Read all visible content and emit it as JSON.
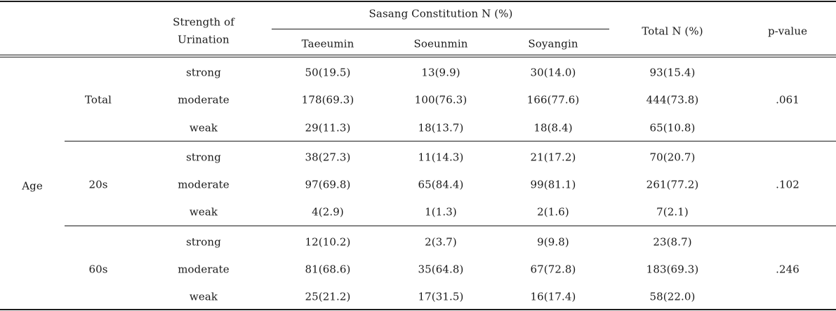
{
  "header": {
    "strength_line1": "Strength of",
    "strength_line2": "Urination",
    "group_title": "Sasang Constitution N (%)",
    "constitutions": [
      "Taeeumin",
      "Soeunmin",
      "Soyangin"
    ],
    "total": "Total N (%)",
    "pvalue": "p-value"
  },
  "row_label": "Age",
  "groups": [
    {
      "name": "Total",
      "pvalue": ".061",
      "rows": [
        {
          "strength": "strong",
          "taeeumin": "50(19.5)",
          "soeunmin": "13(9.9)",
          "soyangin": "30(14.0)",
          "total": "93(15.4)"
        },
        {
          "strength": "moderate",
          "taeeumin": "178(69.3)",
          "soeunmin": "100(76.3)",
          "soyangin": "166(77.6)",
          "total": "444(73.8)"
        },
        {
          "strength": "weak",
          "taeeumin": "29(11.3)",
          "soeunmin": "18(13.7)",
          "soyangin": "18(8.4)",
          "total": "65(10.8)"
        }
      ]
    },
    {
      "name": "20s",
      "pvalue": ".102",
      "rows": [
        {
          "strength": "strong",
          "taeeumin": "38(27.3)",
          "soeunmin": "11(14.3)",
          "soyangin": "21(17.2)",
          "total": "70(20.7)"
        },
        {
          "strength": "moderate",
          "taeeumin": "97(69.8)",
          "soeunmin": "65(84.4)",
          "soyangin": "99(81.1)",
          "total": "261(77.2)"
        },
        {
          "strength": "weak",
          "taeeumin": "4(2.9)",
          "soeunmin": "1(1.3)",
          "soyangin": "2(1.6)",
          "total": "7(2.1)"
        }
      ]
    },
    {
      "name": "60s",
      "pvalue": ".246",
      "rows": [
        {
          "strength": "strong",
          "taeeumin": "12(10.2)",
          "soeunmin": "2(3.7)",
          "soyangin": "9(9.8)",
          "total": "23(8.7)"
        },
        {
          "strength": "moderate",
          "taeeumin": "81(68.6)",
          "soeunmin": "35(64.8)",
          "soyangin": "67(72.8)",
          "total": "183(69.3)"
        },
        {
          "strength": "weak",
          "taeeumin": "25(21.2)",
          "soeunmin": "17(31.5)",
          "soyangin": "16(17.4)",
          "total": "58(22.0)"
        }
      ]
    }
  ]
}
